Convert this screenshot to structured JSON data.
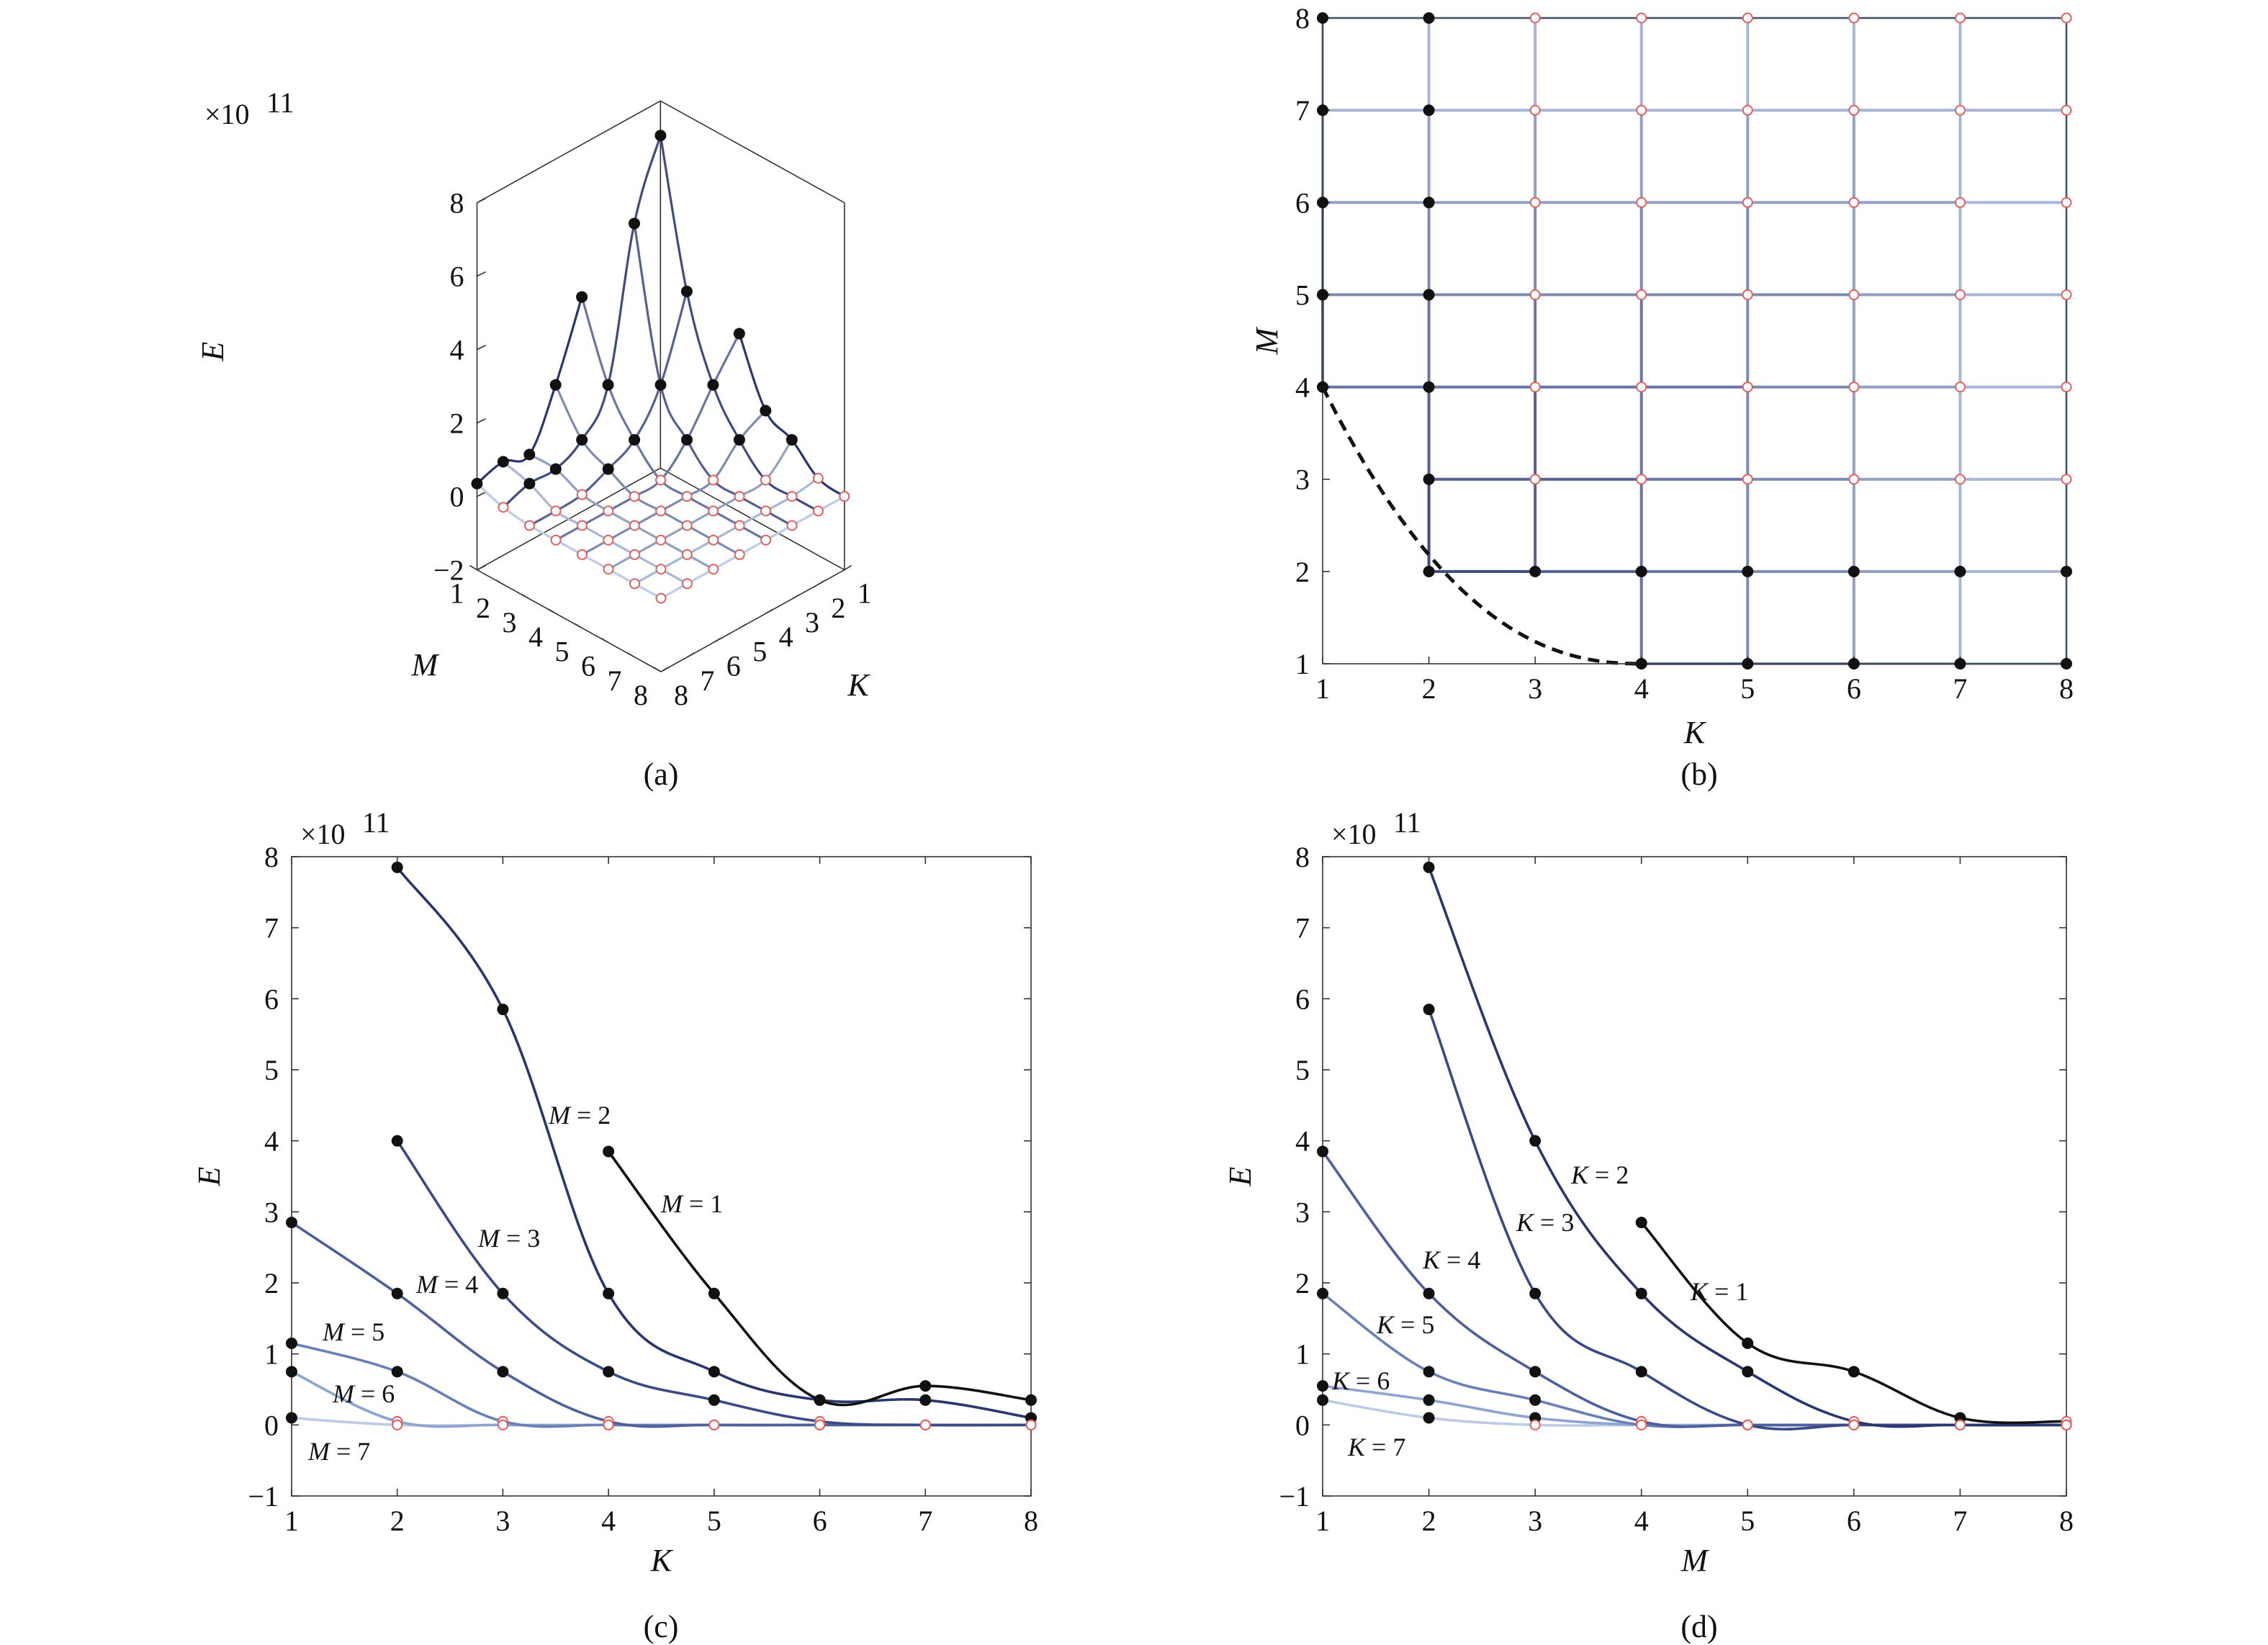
{
  "colors": {
    "dark": "#111111",
    "blue_dark": "#2f3f7a",
    "blue_mid": "#5a6ea6",
    "blue_light": "#b8cbe6",
    "marker_dark": "#111111",
    "marker_red": "#e06060"
  },
  "chart_data": [
    {
      "panel": "a",
      "type": "surface3d",
      "caption": "(a)",
      "multiplier": "×10",
      "multiplier_exp": "11",
      "zlabel": "E",
      "xlabel": "M",
      "ylabel": "K",
      "zlim": [
        -2,
        8
      ],
      "zticks": [
        "−2",
        "0",
        "2",
        "4",
        "6",
        "8"
      ],
      "mticks": [
        "1",
        "2",
        "3",
        "4",
        "5",
        "6",
        "7",
        "8"
      ],
      "kticks": [
        "1",
        "2",
        "3",
        "4",
        "5",
        "6",
        "7",
        "8"
      ],
      "valid_m_by_k": {
        "1": [
          4,
          5,
          6,
          7,
          8
        ],
        "2": [
          2,
          3,
          4,
          5,
          6,
          7,
          8
        ],
        "3": [
          2,
          3,
          4,
          5,
          6,
          7,
          8
        ],
        "4": [
          1,
          2,
          3,
          4,
          5,
          6,
          7,
          8
        ],
        "5": [
          1,
          2,
          3,
          4,
          5,
          6,
          7,
          8
        ],
        "6": [
          1,
          2,
          3,
          4,
          5,
          6,
          7,
          8
        ],
        "7": [
          1,
          2,
          3,
          4,
          5,
          6,
          7,
          8
        ],
        "8": [
          1,
          2,
          3,
          4,
          5,
          6,
          7,
          8
        ]
      }
    },
    {
      "panel": "b",
      "type": "scatter",
      "caption": "(b)",
      "xlabel": "K",
      "ylabel": "M",
      "xlim": [
        1,
        8
      ],
      "ylim": [
        1,
        8
      ],
      "xticks": [
        "1",
        "2",
        "3",
        "4",
        "5",
        "6",
        "7",
        "8"
      ],
      "yticks": [
        "1",
        "2",
        "3",
        "4",
        "5",
        "6",
        "7",
        "8"
      ],
      "valid_m_by_k": {
        "1": [
          4,
          5,
          6,
          7,
          8
        ],
        "2": [
          2,
          3,
          4,
          5,
          6,
          7,
          8
        ],
        "3": [
          2,
          3,
          4,
          5,
          6,
          7,
          8
        ],
        "4": [
          1,
          2,
          3,
          4,
          5,
          6,
          7,
          8
        ],
        "5": [
          1,
          2,
          3,
          4,
          5,
          6,
          7,
          8
        ],
        "6": [
          1,
          2,
          3,
          4,
          5,
          6,
          7,
          8
        ],
        "7": [
          1,
          2,
          3,
          4,
          5,
          6,
          7,
          8
        ],
        "8": [
          1,
          2,
          3,
          4,
          5,
          6,
          7,
          8
        ]
      },
      "dark_points": [
        [
          1,
          4
        ],
        [
          1,
          5
        ],
        [
          1,
          6
        ],
        [
          1,
          7
        ],
        [
          1,
          8
        ],
        [
          2,
          2
        ],
        [
          2,
          3
        ],
        [
          2,
          4
        ],
        [
          2,
          5
        ],
        [
          2,
          6
        ],
        [
          2,
          7
        ],
        [
          2,
          8
        ],
        [
          3,
          2
        ],
        [
          4,
          1
        ],
        [
          4,
          2
        ],
        [
          5,
          1
        ],
        [
          5,
          2
        ],
        [
          6,
          1
        ],
        [
          6,
          2
        ],
        [
          7,
          1
        ],
        [
          7,
          2
        ],
        [
          8,
          1
        ],
        [
          8,
          2
        ]
      ],
      "boundary_curve": "dashed, from (1,4) through (2,2) to (4,1)"
    },
    {
      "panel": "c",
      "type": "line",
      "caption": "(c)",
      "multiplier": "×10",
      "multiplier_exp": "11",
      "xlabel": "K",
      "ylabel": "E",
      "xlim": [
        1,
        8
      ],
      "ylim": [
        -1,
        8
      ],
      "xticks": [
        "1",
        "2",
        "3",
        "4",
        "5",
        "6",
        "7",
        "8"
      ],
      "yticks": [
        "−1",
        "0",
        "1",
        "2",
        "3",
        "4",
        "5",
        "6",
        "7",
        "8"
      ],
      "series": [
        {
          "name": "M = 1",
          "label_prefix": "M",
          "label_suffix": " = 1",
          "x": [
            4,
            5,
            6,
            7,
            8
          ],
          "y": [
            3.85,
            1.85,
            0.35,
            0.55,
            0.35
          ],
          "color": "#111111"
        },
        {
          "name": "M = 2",
          "label_prefix": "M",
          "label_suffix": " = 2",
          "x": [
            2,
            3,
            4,
            5,
            6,
            7,
            8
          ],
          "y": [
            7.85,
            5.85,
            1.85,
            0.75,
            0.35,
            0.35,
            0.1
          ],
          "color": "#2a3670"
        },
        {
          "name": "M = 3",
          "label_prefix": "M",
          "label_suffix": " = 3",
          "x": [
            2,
            3,
            4,
            5,
            6,
            7,
            8
          ],
          "y": [
            4.0,
            1.85,
            0.75,
            0.35,
            0.05,
            0.0,
            0.0
          ],
          "color": "#3a4a86"
        },
        {
          "name": "M = 4",
          "label_prefix": "M",
          "label_suffix": " = 4",
          "x": [
            1,
            2,
            3,
            4,
            5,
            6,
            7,
            8
          ],
          "y": [
            2.85,
            1.85,
            0.75,
            0.05,
            0.0,
            0.0,
            0.0,
            0.0
          ],
          "color": "#4d5f9c"
        },
        {
          "name": "M = 5",
          "label_prefix": "M",
          "label_suffix": " = 5",
          "x": [
            1,
            2,
            3,
            4,
            5,
            6,
            7,
            8
          ],
          "y": [
            1.15,
            0.75,
            0.05,
            0.0,
            0.0,
            0.0,
            0.0,
            0.0
          ],
          "color": "#6a7fb6"
        },
        {
          "name": "M = 6",
          "label_prefix": "M",
          "label_suffix": " = 6",
          "x": [
            1,
            2,
            3,
            4,
            5,
            6,
            7,
            8
          ],
          "y": [
            0.75,
            0.05,
            0.0,
            0.0,
            0.0,
            0.0,
            0.0,
            0.0
          ],
          "color": "#8ea3cf"
        },
        {
          "name": "M = 7",
          "label_prefix": "M",
          "label_suffix": " = 7",
          "x": [
            1,
            2,
            3,
            4,
            5,
            6,
            7,
            8
          ],
          "y": [
            0.1,
            0.0,
            0.0,
            0.0,
            0.0,
            0.0,
            0.0,
            0.0
          ],
          "color": "#bccbe6"
        }
      ]
    },
    {
      "panel": "d",
      "type": "line",
      "caption": "(d)",
      "multiplier": "×10",
      "multiplier_exp": "11",
      "xlabel": "M",
      "ylabel": "E",
      "xlim": [
        1,
        8
      ],
      "ylim": [
        -1,
        8
      ],
      "xticks": [
        "1",
        "2",
        "3",
        "4",
        "5",
        "6",
        "7",
        "8"
      ],
      "yticks": [
        "−1",
        "0",
        "1",
        "2",
        "3",
        "4",
        "5",
        "6",
        "7",
        "8"
      ],
      "series": [
        {
          "name": "K = 1",
          "label_prefix": "K",
          "label_suffix": " = 1",
          "x": [
            4,
            5,
            6,
            7,
            8
          ],
          "y": [
            2.85,
            1.15,
            0.75,
            0.1,
            0.05
          ],
          "color": "#111111"
        },
        {
          "name": "K = 2",
          "label_prefix": "K",
          "label_suffix": " = 2",
          "x": [
            2,
            3,
            4,
            5,
            6,
            7,
            8
          ],
          "y": [
            7.85,
            4.0,
            1.85,
            0.75,
            0.05,
            0.0,
            0.0
          ],
          "color": "#2a3670"
        },
        {
          "name": "K = 3",
          "label_prefix": "K",
          "label_suffix": " = 3",
          "x": [
            2,
            3,
            4,
            5,
            6,
            7,
            8
          ],
          "y": [
            5.85,
            1.85,
            0.75,
            0.0,
            0.0,
            0.0,
            0.0
          ],
          "color": "#3a4a86"
        },
        {
          "name": "K = 4",
          "label_prefix": "K",
          "label_suffix": " = 4",
          "x": [
            1,
            2,
            3,
            4,
            5,
            6,
            7,
            8
          ],
          "y": [
            3.85,
            1.85,
            0.75,
            0.05,
            0.0,
            0.0,
            0.0,
            0.0
          ],
          "color": "#4d5f9c"
        },
        {
          "name": "K = 5",
          "label_prefix": "K",
          "label_suffix": " = 5",
          "x": [
            1,
            2,
            3,
            4,
            5,
            6,
            7,
            8
          ],
          "y": [
            1.85,
            0.75,
            0.35,
            0.0,
            0.0,
            0.0,
            0.0,
            0.0
          ],
          "color": "#6a7fb6"
        },
        {
          "name": "K = 6",
          "label_prefix": "K",
          "label_suffix": " = 6",
          "x": [
            1,
            2,
            3,
            4,
            5,
            6,
            7,
            8
          ],
          "y": [
            0.55,
            0.35,
            0.1,
            0.0,
            0.0,
            0.0,
            0.0,
            0.0
          ],
          "color": "#8ea3cf"
        },
        {
          "name": "K = 7",
          "label_prefix": "K",
          "label_suffix": " = 7",
          "x": [
            1,
            2,
            3,
            4,
            5,
            6,
            7,
            8
          ],
          "y": [
            0.35,
            0.1,
            0.0,
            0.0,
            0.0,
            0.0,
            0.0,
            0.0
          ],
          "color": "#bccbe6"
        }
      ]
    }
  ]
}
